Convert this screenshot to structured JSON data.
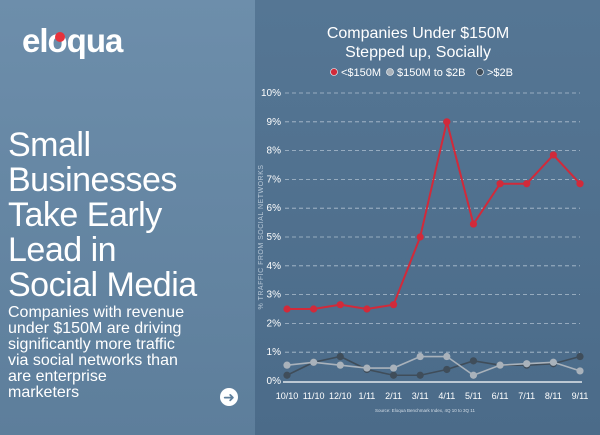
{
  "brand": {
    "logo_text": "eloqua",
    "accent_color": "#e6323c"
  },
  "story": {
    "headline_lines": [
      "Small",
      "Businesses",
      "Take Early",
      "Lead in",
      "Social Media"
    ],
    "subtext_lines": [
      "Companies with revenue",
      "under $150M are driving",
      "significantly more traffic",
      "via social networks than",
      "are enterprise",
      "marketers"
    ],
    "next_icon": "arrow-right-icon"
  },
  "chart_data": {
    "type": "line",
    "title_lines": [
      "Companies Under $150M",
      "Stepped up, Socially"
    ],
    "ylabel": "% TRAFFIC FROM SOCIAL NETWORKS",
    "ylim": [
      0,
      10
    ],
    "yticks": [
      "0%",
      "1%",
      "2%",
      "3%",
      "4%",
      "5%",
      "6%",
      "7%",
      "8%",
      "9%",
      "10%"
    ],
    "categories": [
      "10/10",
      "11/10",
      "12/10",
      "1/11",
      "2/11",
      "3/11",
      "4/11",
      "5/11",
      "6/11",
      "7/11",
      "8/11",
      "9/11"
    ],
    "series": [
      {
        "name": "<$150M",
        "color": "#d12a3a",
        "values": [
          2.5,
          2.5,
          2.65,
          2.5,
          2.65,
          5.0,
          9.0,
          5.45,
          6.85,
          6.85,
          7.85,
          6.85
        ]
      },
      {
        "name": "$150M to $2B",
        "color": "#a9b2bb",
        "values": [
          0.55,
          0.65,
          0.55,
          0.45,
          0.45,
          0.85,
          0.85,
          0.2,
          0.55,
          0.6,
          0.65,
          0.35
        ]
      },
      {
        "name": ">$2B",
        "color": "#3f4d5a",
        "values": [
          0.2,
          0.65,
          0.85,
          0.4,
          0.2,
          0.2,
          0.4,
          0.7,
          0.55,
          0.55,
          0.6,
          0.85
        ]
      }
    ],
    "source": "Source: Eloqua Benchmark Index, 4Q 10 to 3Q 11"
  }
}
